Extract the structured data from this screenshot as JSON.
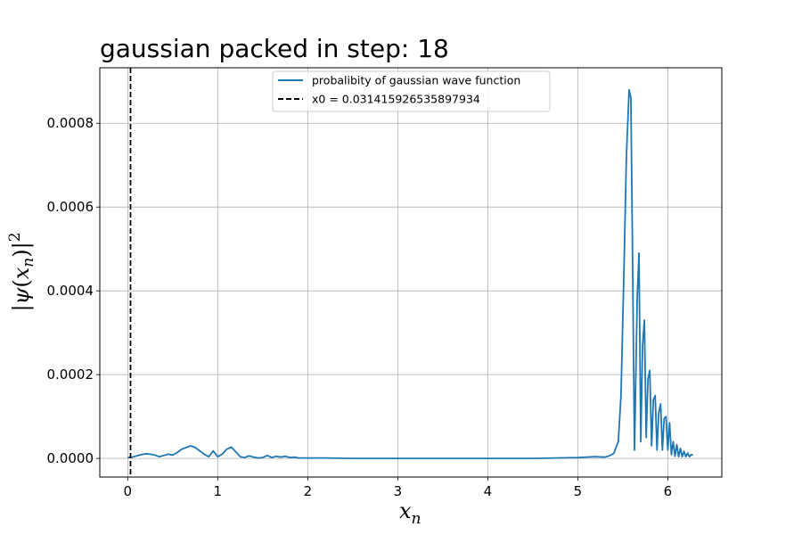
{
  "chart_data": {
    "type": "line",
    "title": "gaussian packed in step: 18",
    "xlabel": "x_n",
    "ylabel": "|ψ(x_n)|^2",
    "xlim": [
      -0.31,
      6.6
    ],
    "ylim": [
      -4.45e-05,
      0.0009325
    ],
    "xticks": [
      0,
      1,
      2,
      3,
      4,
      5,
      6
    ],
    "xtick_labels": [
      "0",
      "1",
      "2",
      "3",
      "4",
      "5",
      "6"
    ],
    "yticks": [
      0,
      0.0002,
      0.0004,
      0.0006,
      0.0008
    ],
    "ytick_labels": [
      "0.0000",
      "0.0002",
      "0.0004",
      "0.0006",
      "0.0008"
    ],
    "grid": true,
    "legend_position": "top-center",
    "series": [
      {
        "name": "probalibity of gaussian wave function",
        "style": "solid",
        "color": "#1f77b4",
        "x": [
          0.0,
          0.05,
          0.1,
          0.15,
          0.2,
          0.25,
          0.3,
          0.35,
          0.4,
          0.45,
          0.5,
          0.55,
          0.6,
          0.65,
          0.7,
          0.75,
          0.8,
          0.85,
          0.9,
          0.95,
          1.0,
          1.05,
          1.1,
          1.15,
          1.2,
          1.25,
          1.3,
          1.35,
          1.4,
          1.45,
          1.5,
          1.55,
          1.6,
          1.65,
          1.7,
          1.75,
          1.8,
          1.85,
          1.9,
          2.0,
          2.2,
          2.5,
          3.0,
          3.5,
          4.0,
          4.5,
          5.0,
          5.2,
          5.3,
          5.35,
          5.4,
          5.45,
          5.48,
          5.51,
          5.54,
          5.57,
          5.59,
          5.61,
          5.63,
          5.66,
          5.68,
          5.7,
          5.72,
          5.74,
          5.76,
          5.78,
          5.8,
          5.82,
          5.84,
          5.86,
          5.88,
          5.9,
          5.92,
          5.94,
          5.96,
          5.98,
          6.0,
          6.02,
          6.04,
          6.06,
          6.08,
          6.1,
          6.12,
          6.14,
          6.16,
          6.18,
          6.2,
          6.22,
          6.24,
          6.26,
          6.28
        ],
        "y": [
          2e-06,
          3e-06,
          6e-06,
          9e-06,
          1.1e-05,
          1e-05,
          8e-06,
          4e-06,
          7e-06,
          1e-05,
          8e-06,
          1.4e-05,
          2.2e-05,
          2.6e-05,
          3e-05,
          2.6e-05,
          1.8e-05,
          1e-05,
          4e-06,
          1.8e-05,
          4e-06,
          1e-05,
          2.2e-05,
          2.7e-05,
          1.6e-05,
          4e-06,
          2e-06,
          6e-06,
          3e-06,
          1e-06,
          2e-06,
          7e-06,
          2e-06,
          5e-06,
          3e-06,
          5e-06,
          2e-06,
          3e-06,
          1e-06,
          1e-06,
          1e-06,
          0.0,
          0.0,
          0.0,
          0.0,
          0.0,
          2e-06,
          4e-06,
          3e-06,
          6e-06,
          1.2e-05,
          4e-05,
          0.00015,
          0.00042,
          0.00072,
          0.00088,
          0.00086,
          0.00045,
          2e-05,
          0.00038,
          0.00049,
          4e-05,
          0.00027,
          0.00033,
          5e-05,
          0.00019,
          0.00021,
          3e-05,
          0.00014,
          0.00015,
          2e-05,
          0.00011,
          0.00013,
          2e-05,
          9.5e-05,
          0.0001,
          2e-05,
          8.5e-05,
          9e-06,
          4e-05,
          5e-06,
          3.3e-05,
          4e-06,
          2.4e-05,
          4e-06,
          1.7e-05,
          4e-06,
          1.3e-05,
          4e-06,
          9e-06,
          8e-06
        ]
      },
      {
        "name": "x0 = 0.031415926535897934",
        "style": "dashed",
        "color": "#000000",
        "x_constant": 0.031415926535897934
      }
    ]
  }
}
